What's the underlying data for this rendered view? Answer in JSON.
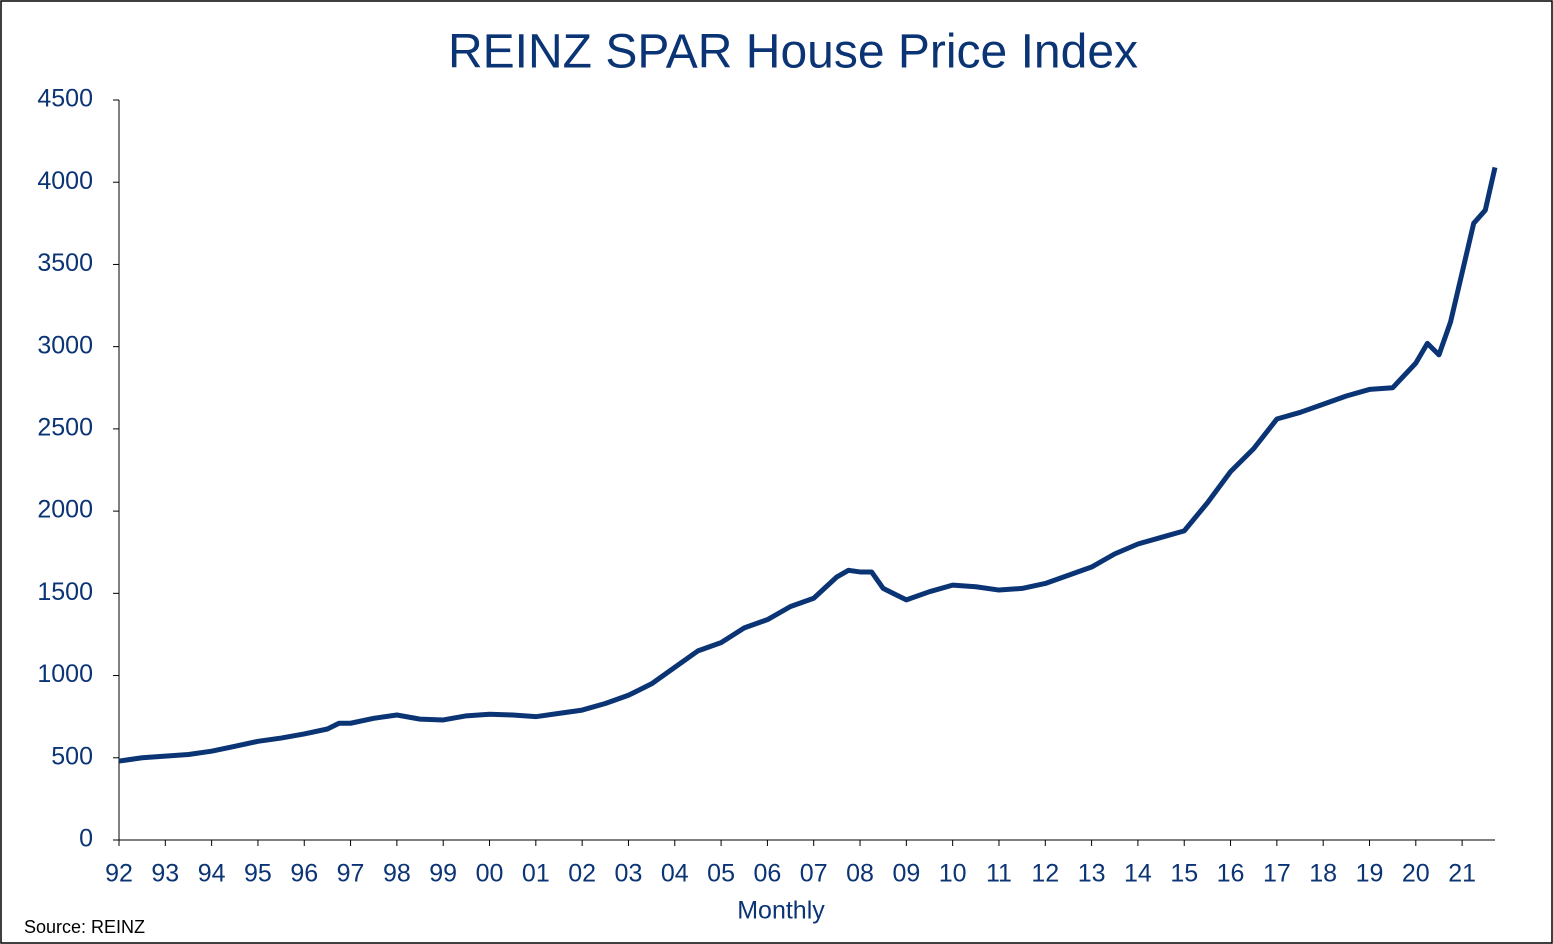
{
  "chart_data": {
    "type": "line",
    "title": "REINZ SPAR House Price Index",
    "x_label": "Monthly",
    "source": "Source: REINZ",
    "xlim": [
      1992,
      2021.71
    ],
    "xticks": [
      {
        "value": 1992,
        "label": "92"
      },
      {
        "value": 1993,
        "label": "93"
      },
      {
        "value": 1994,
        "label": "94"
      },
      {
        "value": 1995,
        "label": "95"
      },
      {
        "value": 1996,
        "label": "96"
      },
      {
        "value": 1997,
        "label": "97"
      },
      {
        "value": 1998,
        "label": "98"
      },
      {
        "value": 1999,
        "label": "99"
      },
      {
        "value": 2000,
        "label": "00"
      },
      {
        "value": 2001,
        "label": "01"
      },
      {
        "value": 2002,
        "label": "02"
      },
      {
        "value": 2003,
        "label": "03"
      },
      {
        "value": 2004,
        "label": "04"
      },
      {
        "value": 2005,
        "label": "05"
      },
      {
        "value": 2006,
        "label": "06"
      },
      {
        "value": 2007,
        "label": "07"
      },
      {
        "value": 2008,
        "label": "08"
      },
      {
        "value": 2009,
        "label": "09"
      },
      {
        "value": 2010,
        "label": "10"
      },
      {
        "value": 2011,
        "label": "11"
      },
      {
        "value": 2012,
        "label": "12"
      },
      {
        "value": 2013,
        "label": "13"
      },
      {
        "value": 2014,
        "label": "14"
      },
      {
        "value": 2015,
        "label": "15"
      },
      {
        "value": 2016,
        "label": "16"
      },
      {
        "value": 2017,
        "label": "17"
      },
      {
        "value": 2018,
        "label": "18"
      },
      {
        "value": 2019,
        "label": "19"
      },
      {
        "value": 2020,
        "label": "20"
      },
      {
        "value": 2021,
        "label": "21"
      }
    ],
    "ylim": [
      0,
      4500
    ],
    "yticks": [
      0,
      500,
      1000,
      1500,
      2000,
      2500,
      3000,
      3500,
      4000,
      4500
    ],
    "x": [
      1992.0,
      1992.5,
      1993.0,
      1993.5,
      1994.0,
      1994.5,
      1995.0,
      1995.5,
      1996.0,
      1996.5,
      1996.75,
      1997.0,
      1997.5,
      1998.0,
      1998.5,
      1999.0,
      1999.5,
      2000.0,
      2000.5,
      2001.0,
      2001.5,
      2002.0,
      2002.5,
      2003.0,
      2003.5,
      2004.0,
      2004.5,
      2005.0,
      2005.5,
      2006.0,
      2006.5,
      2007.0,
      2007.5,
      2007.75,
      2008.0,
      2008.25,
      2008.5,
      2009.0,
      2009.5,
      2010.0,
      2010.5,
      2011.0,
      2011.5,
      2012.0,
      2012.5,
      2013.0,
      2013.5,
      2014.0,
      2014.5,
      2015.0,
      2015.5,
      2016.0,
      2016.5,
      2017.0,
      2017.5,
      2018.0,
      2018.5,
      2019.0,
      2019.5,
      2020.0,
      2020.25,
      2020.5,
      2020.75,
      2021.0,
      2021.25,
      2021.5,
      2021.71
    ],
    "series": [
      {
        "name": "REINZ SPAR House Price Index",
        "color": "#0b3475",
        "values": [
          480,
          500,
          510,
          520,
          540,
          570,
          600,
          620,
          645,
          675,
          710,
          710,
          740,
          760,
          735,
          730,
          755,
          765,
          760,
          750,
          770,
          790,
          830,
          880,
          950,
          1050,
          1150,
          1200,
          1290,
          1340,
          1420,
          1470,
          1600,
          1640,
          1630,
          1630,
          1530,
          1460,
          1510,
          1550,
          1540,
          1520,
          1530,
          1560,
          1610,
          1660,
          1740,
          1800,
          1840,
          1880,
          2050,
          2240,
          2380,
          2560,
          2600,
          2650,
          2700,
          2740,
          2750,
          2900,
          3020,
          2950,
          3150,
          3450,
          3750,
          3830,
          4090
        ]
      }
    ]
  }
}
